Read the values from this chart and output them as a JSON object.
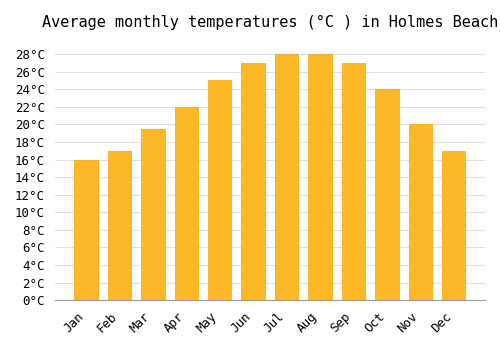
{
  "title": "Average monthly temperatures (°C ) in Holmes Beach",
  "months": [
    "Jan",
    "Feb",
    "Mar",
    "Apr",
    "May",
    "Jun",
    "Jul",
    "Aug",
    "Sep",
    "Oct",
    "Nov",
    "Dec"
  ],
  "temperatures": [
    16,
    17,
    19.5,
    22,
    25,
    27,
    28,
    28,
    27,
    24,
    20,
    17
  ],
  "bar_color": "#FDB827",
  "bar_edge_color": "#FFA500",
  "background_color": "#FFFFFF",
  "grid_color": "#E0E0E0",
  "ylim": [
    0,
    29.5
  ],
  "yticks": [
    0,
    2,
    4,
    6,
    8,
    10,
    12,
    14,
    16,
    18,
    20,
    22,
    24,
    26,
    28
  ],
  "title_fontsize": 11,
  "tick_fontsize": 9
}
